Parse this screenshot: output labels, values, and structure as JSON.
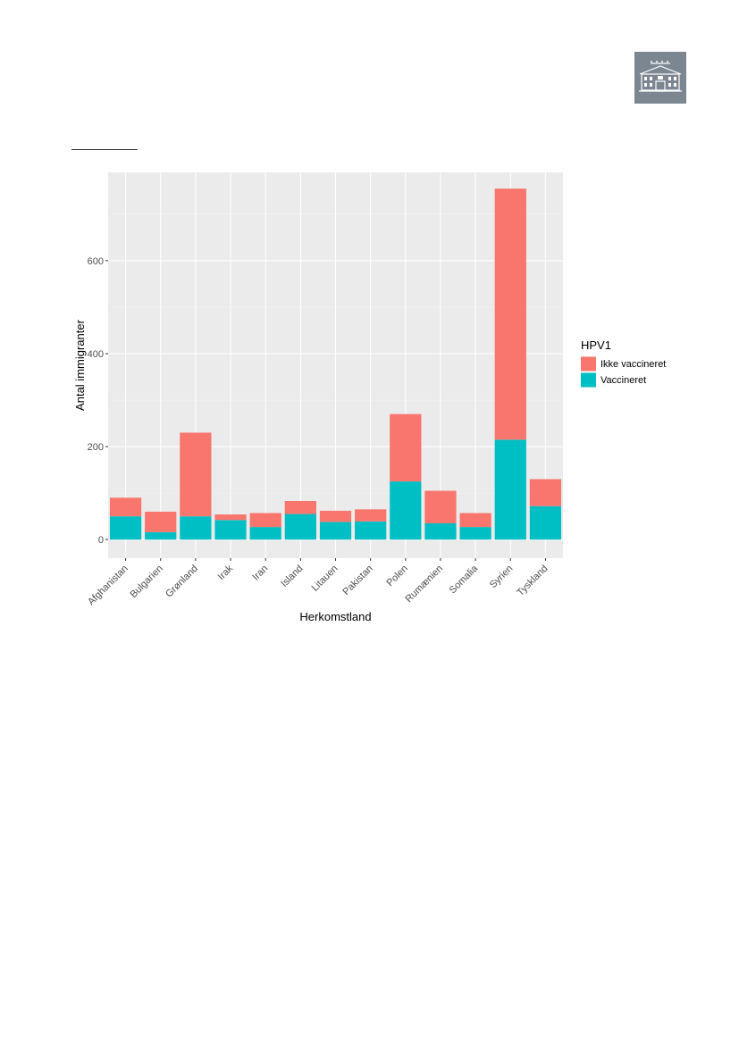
{
  "logo": {
    "icon": "building-icon",
    "background": "#7c8691"
  },
  "chart_data": {
    "type": "bar",
    "stacked": true,
    "categories": [
      "Afghanistan",
      "Bulgarien",
      "Grønland",
      "Irak",
      "Iran",
      "Island",
      "Litauen",
      "Pakistan",
      "Polen",
      "Rumænien",
      "Somalia",
      "Syrien",
      "Tyskland"
    ],
    "series": [
      {
        "name": "Ikke vaccineret",
        "color": "#f8766d",
        "values": [
          40,
          44,
          180,
          12,
          30,
          28,
          24,
          26,
          145,
          70,
          30,
          540,
          58
        ]
      },
      {
        "name": "Vaccineret",
        "color": "#00bfc4",
        "values": [
          50,
          16,
          50,
          42,
          27,
          55,
          38,
          39,
          125,
          35,
          27,
          215,
          72
        ]
      }
    ],
    "title": "",
    "xlabel": "Herkomstland",
    "ylabel": "Antal immigranter",
    "legend_title": "HPV1",
    "legend_position": "right",
    "ylim": [
      -40,
      790
    ],
    "yticks": [
      0,
      200,
      400,
      600
    ],
    "grid": true,
    "panel_background": "#ebebeb"
  }
}
